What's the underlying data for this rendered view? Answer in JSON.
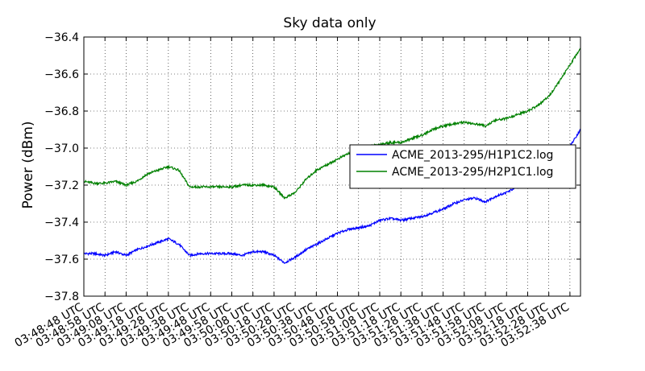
{
  "chart_data": {
    "type": "line",
    "title": "Sky data only",
    "xlabel": "",
    "ylabel": "Power (dBm)",
    "ylim": [
      -37.8,
      -36.4
    ],
    "yticks": [
      -37.8,
      -37.6,
      -37.4,
      -37.2,
      -37.0,
      -36.8,
      -36.6,
      -36.4
    ],
    "ytick_labels": [
      "−37.8",
      "−37.6",
      "−37.4",
      "−37.2",
      "−37.0",
      "−36.8",
      "−36.6",
      "−36.4"
    ],
    "xlim": [
      0,
      235
    ],
    "xticks": [
      0,
      10,
      20,
      30,
      40,
      50,
      60,
      70,
      80,
      90,
      100,
      110,
      120,
      130,
      140,
      150,
      160,
      170,
      180,
      190,
      200,
      210,
      220,
      230
    ],
    "xtick_labels": [
      "03:48:48 UTC",
      "03:48:58 UTC",
      "03:49:08 UTC",
      "03:49:18 UTC",
      "03:49:28 UTC",
      "03:49:38 UTC",
      "03:49:48 UTC",
      "03:49:58 UTC",
      "03:50:08 UTC",
      "03:50:18 UTC",
      "03:50:28 UTC",
      "03:50:38 UTC",
      "03:50:48 UTC",
      "03:50:58 UTC",
      "03:51:08 UTC",
      "03:51:18 UTC",
      "03:51:28 UTC",
      "03:51:38 UTC",
      "03:51:48 UTC",
      "03:51:58 UTC",
      "03:52:08 UTC",
      "03:52:18 UTC",
      "03:52:28 UTC",
      "03:52:38 UTC"
    ],
    "grid": true,
    "legend_position": "center-right",
    "series": [
      {
        "name": "ACME_2013-295/H1P1C2.log",
        "color": "#0000ff",
        "x": [
          0,
          5,
          10,
          15,
          20,
          25,
          30,
          35,
          40,
          45,
          50,
          55,
          60,
          65,
          70,
          75,
          80,
          85,
          90,
          95,
          100,
          105,
          110,
          115,
          120,
          125,
          130,
          135,
          140,
          145,
          150,
          155,
          160,
          165,
          170,
          175,
          180,
          185,
          190,
          195,
          200,
          205,
          210,
          215,
          220,
          225,
          230,
          235
        ],
        "y": [
          -37.57,
          -37.57,
          -37.58,
          -37.56,
          -37.58,
          -37.55,
          -37.53,
          -37.51,
          -37.49,
          -37.52,
          -37.58,
          -37.57,
          -37.57,
          -37.57,
          -37.57,
          -37.58,
          -37.56,
          -37.56,
          -37.58,
          -37.62,
          -37.59,
          -37.55,
          -37.52,
          -37.49,
          -37.46,
          -37.44,
          -37.43,
          -37.42,
          -37.39,
          -37.38,
          -37.39,
          -37.38,
          -37.37,
          -37.35,
          -37.33,
          -37.3,
          -37.28,
          -37.27,
          -37.29,
          -37.26,
          -37.24,
          -37.21,
          -37.19,
          -37.16,
          -37.12,
          -37.07,
          -36.99,
          -36.9
        ]
      },
      {
        "name": "ACME_2013-295/H2P1C1.log",
        "color": "#008000",
        "x": [
          0,
          5,
          10,
          15,
          20,
          25,
          30,
          35,
          40,
          45,
          50,
          55,
          60,
          65,
          70,
          75,
          80,
          85,
          90,
          95,
          100,
          105,
          110,
          115,
          120,
          125,
          130,
          135,
          140,
          145,
          150,
          155,
          160,
          165,
          170,
          175,
          180,
          185,
          190,
          195,
          200,
          205,
          210,
          215,
          220,
          225,
          230,
          235
        ],
        "y": [
          -37.18,
          -37.19,
          -37.19,
          -37.18,
          -37.2,
          -37.18,
          -37.14,
          -37.12,
          -37.1,
          -37.12,
          -37.21,
          -37.21,
          -37.21,
          -37.21,
          -37.21,
          -37.2,
          -37.2,
          -37.2,
          -37.21,
          -37.27,
          -37.24,
          -37.17,
          -37.12,
          -37.09,
          -37.06,
          -37.03,
          -37.01,
          -36.99,
          -36.98,
          -36.97,
          -36.97,
          -36.95,
          -36.93,
          -36.9,
          -36.88,
          -36.87,
          -36.86,
          -36.87,
          -36.88,
          -36.85,
          -36.84,
          -36.82,
          -36.8,
          -36.77,
          -36.72,
          -36.64,
          -36.55,
          -36.46
        ]
      }
    ]
  }
}
